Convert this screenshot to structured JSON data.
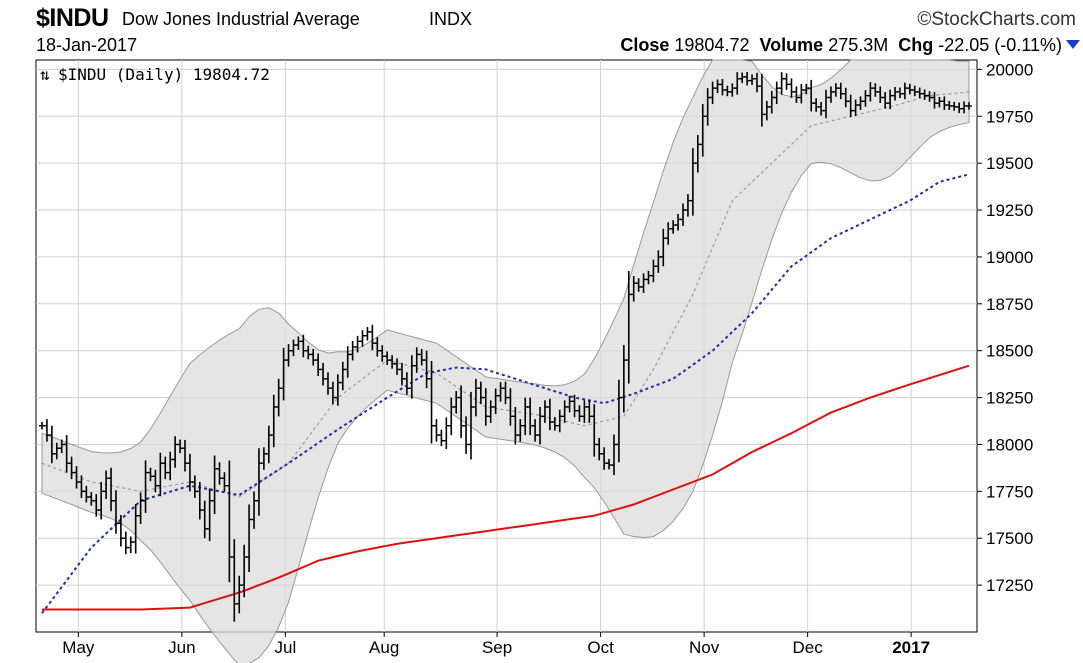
{
  "header": {
    "ticker": "$INDU",
    "name": "Dow Jones Industrial Average",
    "exchange": "INDX",
    "brand": "©StockCharts.com",
    "date": "18-Jan-2017",
    "close_label": "Close",
    "close_value": "19804.72",
    "volume_label": "Volume",
    "volume_value": "275.3M",
    "chg_label": "Chg",
    "chg_value": "-22.05 (-0.11%)",
    "chg_arrow_icon": "triangle-down-icon",
    "chg_arrow_color": "#1a3cc8"
  },
  "legend": {
    "label": "$INDU (Daily) 19804.72",
    "icon": "up-down-arrows-icon"
  },
  "chart_data": {
    "type": "ohlc",
    "title": "$INDU Dow Jones Industrial Average INDX",
    "x_labels": [
      "May",
      "Jun",
      "Jul",
      "Aug",
      "Sep",
      "Oct",
      "Nov",
      "Dec",
      "2017"
    ],
    "y_ticks": [
      17250,
      17500,
      17750,
      18000,
      18250,
      18500,
      18750,
      19000,
      19250,
      19500,
      19750,
      20000
    ],
    "ylim": [
      17000,
      20050
    ],
    "grid": true,
    "y_axis_position": "right",
    "colors": {
      "price": "#000000",
      "bollinger_fill": "#dcdcdc",
      "bollinger_edge": "#9a9a9a",
      "bollinger_mid": "#999999",
      "ma_blue": "#1f2fa8",
      "ma_red": "#e01010"
    },
    "series": [
      {
        "name": "$INDU (Daily)",
        "kind": "ohlc-close",
        "x": [
          0,
          1,
          2,
          3,
          4,
          5,
          6,
          7,
          8,
          9,
          10,
          11,
          12,
          13,
          14,
          15,
          16,
          17,
          18,
          19,
          20,
          21,
          22,
          23,
          24,
          25,
          26,
          27,
          28,
          29,
          30,
          31,
          32,
          33,
          34,
          35,
          36,
          37,
          38,
          39,
          40,
          41,
          42,
          43,
          44,
          45,
          46,
          47,
          48,
          49,
          50,
          51,
          52,
          53,
          54,
          55,
          56,
          57,
          58,
          59,
          60,
          61,
          62,
          63,
          64,
          65,
          66,
          67,
          68,
          69,
          70,
          71,
          72,
          73,
          74,
          75,
          76,
          77,
          78,
          79,
          80,
          81,
          82,
          83,
          84,
          85,
          86,
          87,
          88,
          89,
          90,
          91,
          92,
          93,
          94,
          95,
          96,
          97,
          98,
          99,
          100,
          101,
          102,
          103,
          104,
          105,
          106,
          107,
          108,
          109,
          110,
          111,
          112,
          113,
          114,
          115,
          116,
          117,
          118,
          119,
          120,
          121,
          122,
          123,
          124,
          125,
          126,
          127,
          128,
          129,
          130,
          131,
          132,
          133,
          134,
          135,
          136,
          137,
          138,
          139,
          140,
          141,
          142,
          143,
          144,
          145,
          146,
          147,
          148,
          149,
          150,
          151,
          152,
          153,
          154,
          155,
          156,
          157,
          158,
          159,
          160,
          161,
          162,
          163,
          164,
          165,
          166,
          167,
          168,
          169,
          170,
          171,
          172,
          173,
          174,
          175,
          176,
          177,
          178,
          179,
          180,
          181,
          182,
          183,
          184,
          185,
          186,
          187,
          188
        ],
        "values": [
          18100,
          18050,
          17950,
          17980,
          18000,
          17900,
          17850,
          17800,
          17750,
          17720,
          17700,
          17650,
          17750,
          17820,
          17700,
          17580,
          17500,
          17450,
          17480,
          17620,
          17700,
          17850,
          17830,
          17780,
          17900,
          17850,
          17920,
          18000,
          17980,
          17900,
          17800,
          17750,
          17650,
          17550,
          17700,
          17870,
          17820,
          17780,
          17400,
          17150,
          17250,
          17400,
          17600,
          17700,
          17900,
          17950,
          18050,
          18200,
          18300,
          18450,
          18500,
          18530,
          18550,
          18500,
          18480,
          18450,
          18400,
          18350,
          18300,
          18250,
          18330,
          18400,
          18480,
          18520,
          18550,
          18580,
          18600,
          18540,
          18500,
          18470,
          18450,
          18430,
          18400,
          18350,
          18300,
          18420,
          18480,
          18450,
          18350,
          18100,
          18050,
          18020,
          18100,
          18200,
          18250,
          18100,
          18000,
          18200,
          18300,
          18250,
          18150,
          18200,
          18260,
          18300,
          18250,
          18150,
          18050,
          18100,
          18200,
          18100,
          18050,
          18150,
          18200,
          18120,
          18100,
          18150,
          18200,
          18230,
          18180,
          18150,
          18200,
          18150,
          18000,
          17950,
          17900,
          17890,
          18000,
          18250,
          18450,
          18800,
          18860,
          18840,
          18880,
          18900,
          18950,
          19000,
          19100,
          19150,
          19170,
          19200,
          19250,
          19300,
          19500,
          19600,
          19750,
          19850,
          19900,
          19920,
          19890,
          19880,
          19900,
          19950,
          19960,
          19940,
          19950,
          19910,
          19760,
          19800,
          19850,
          19900,
          19950,
          19920,
          19880,
          19850,
          19890,
          19900,
          19820,
          19800,
          19780,
          19850,
          19880,
          19900,
          19870,
          19830,
          19780,
          19810,
          19830,
          19860,
          19900,
          19880,
          19850,
          19820,
          19860,
          19880,
          19870,
          19900,
          19890,
          19880,
          19870,
          19860,
          19850,
          19820,
          19830,
          19810,
          19805,
          19800,
          19790,
          19805,
          19804.72
        ]
      },
      {
        "name": "MA blue",
        "kind": "line",
        "x": [
          0,
          10,
          20,
          30,
          40,
          50,
          60,
          70,
          78,
          84,
          90,
          96,
          102,
          108,
          114,
          120,
          128,
          136,
          144,
          152,
          160,
          168,
          176,
          182,
          188
        ],
        "values": [
          17100,
          17450,
          17700,
          17780,
          17730,
          17900,
          18080,
          18250,
          18380,
          18410,
          18400,
          18350,
          18300,
          18250,
          18220,
          18270,
          18350,
          18500,
          18700,
          18950,
          19100,
          19200,
          19300,
          19400,
          19440
        ]
      },
      {
        "name": "MA red",
        "kind": "line",
        "x": [
          0,
          20,
          30,
          40,
          48,
          56,
          64,
          72,
          80,
          88,
          96,
          104,
          112,
          120,
          128,
          136,
          144,
          152,
          160,
          168,
          176,
          182,
          188
        ],
        "values": [
          17120,
          17120,
          17130,
          17210,
          17290,
          17380,
          17430,
          17470,
          17500,
          17530,
          17560,
          17590,
          17620,
          17680,
          17760,
          17840,
          17960,
          18060,
          18170,
          18250,
          18320,
          18370,
          18420
        ]
      },
      {
        "name": "Bollinger mid",
        "kind": "line",
        "x": [
          0,
          10,
          20,
          30,
          40,
          50,
          60,
          70,
          80,
          90,
          100,
          110,
          118,
          124,
          132,
          140,
          148,
          156,
          164,
          172,
          180,
          188
        ],
        "values": [
          17900,
          17800,
          17750,
          17800,
          17720,
          17900,
          18250,
          18450,
          18380,
          18200,
          18160,
          18100,
          18150,
          18400,
          18800,
          19300,
          19500,
          19700,
          19750,
          19800,
          19860,
          19880
        ]
      }
    ]
  }
}
